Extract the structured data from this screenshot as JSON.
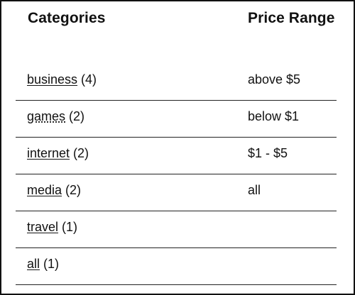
{
  "headers": {
    "categories": "Categories",
    "price_range": "Price Range"
  },
  "categories": [
    {
      "name": "business",
      "count": "(4)"
    },
    {
      "name": "games",
      "count": "(2)"
    },
    {
      "name": "internet",
      "count": "(2)"
    },
    {
      "name": "media",
      "count": "(2)"
    },
    {
      "name": "travel",
      "count": "(1)"
    },
    {
      "name": "all",
      "count": "(1)"
    }
  ],
  "price_ranges": [
    "above $5",
    "below $1",
    "$1 - $5",
    "all"
  ]
}
